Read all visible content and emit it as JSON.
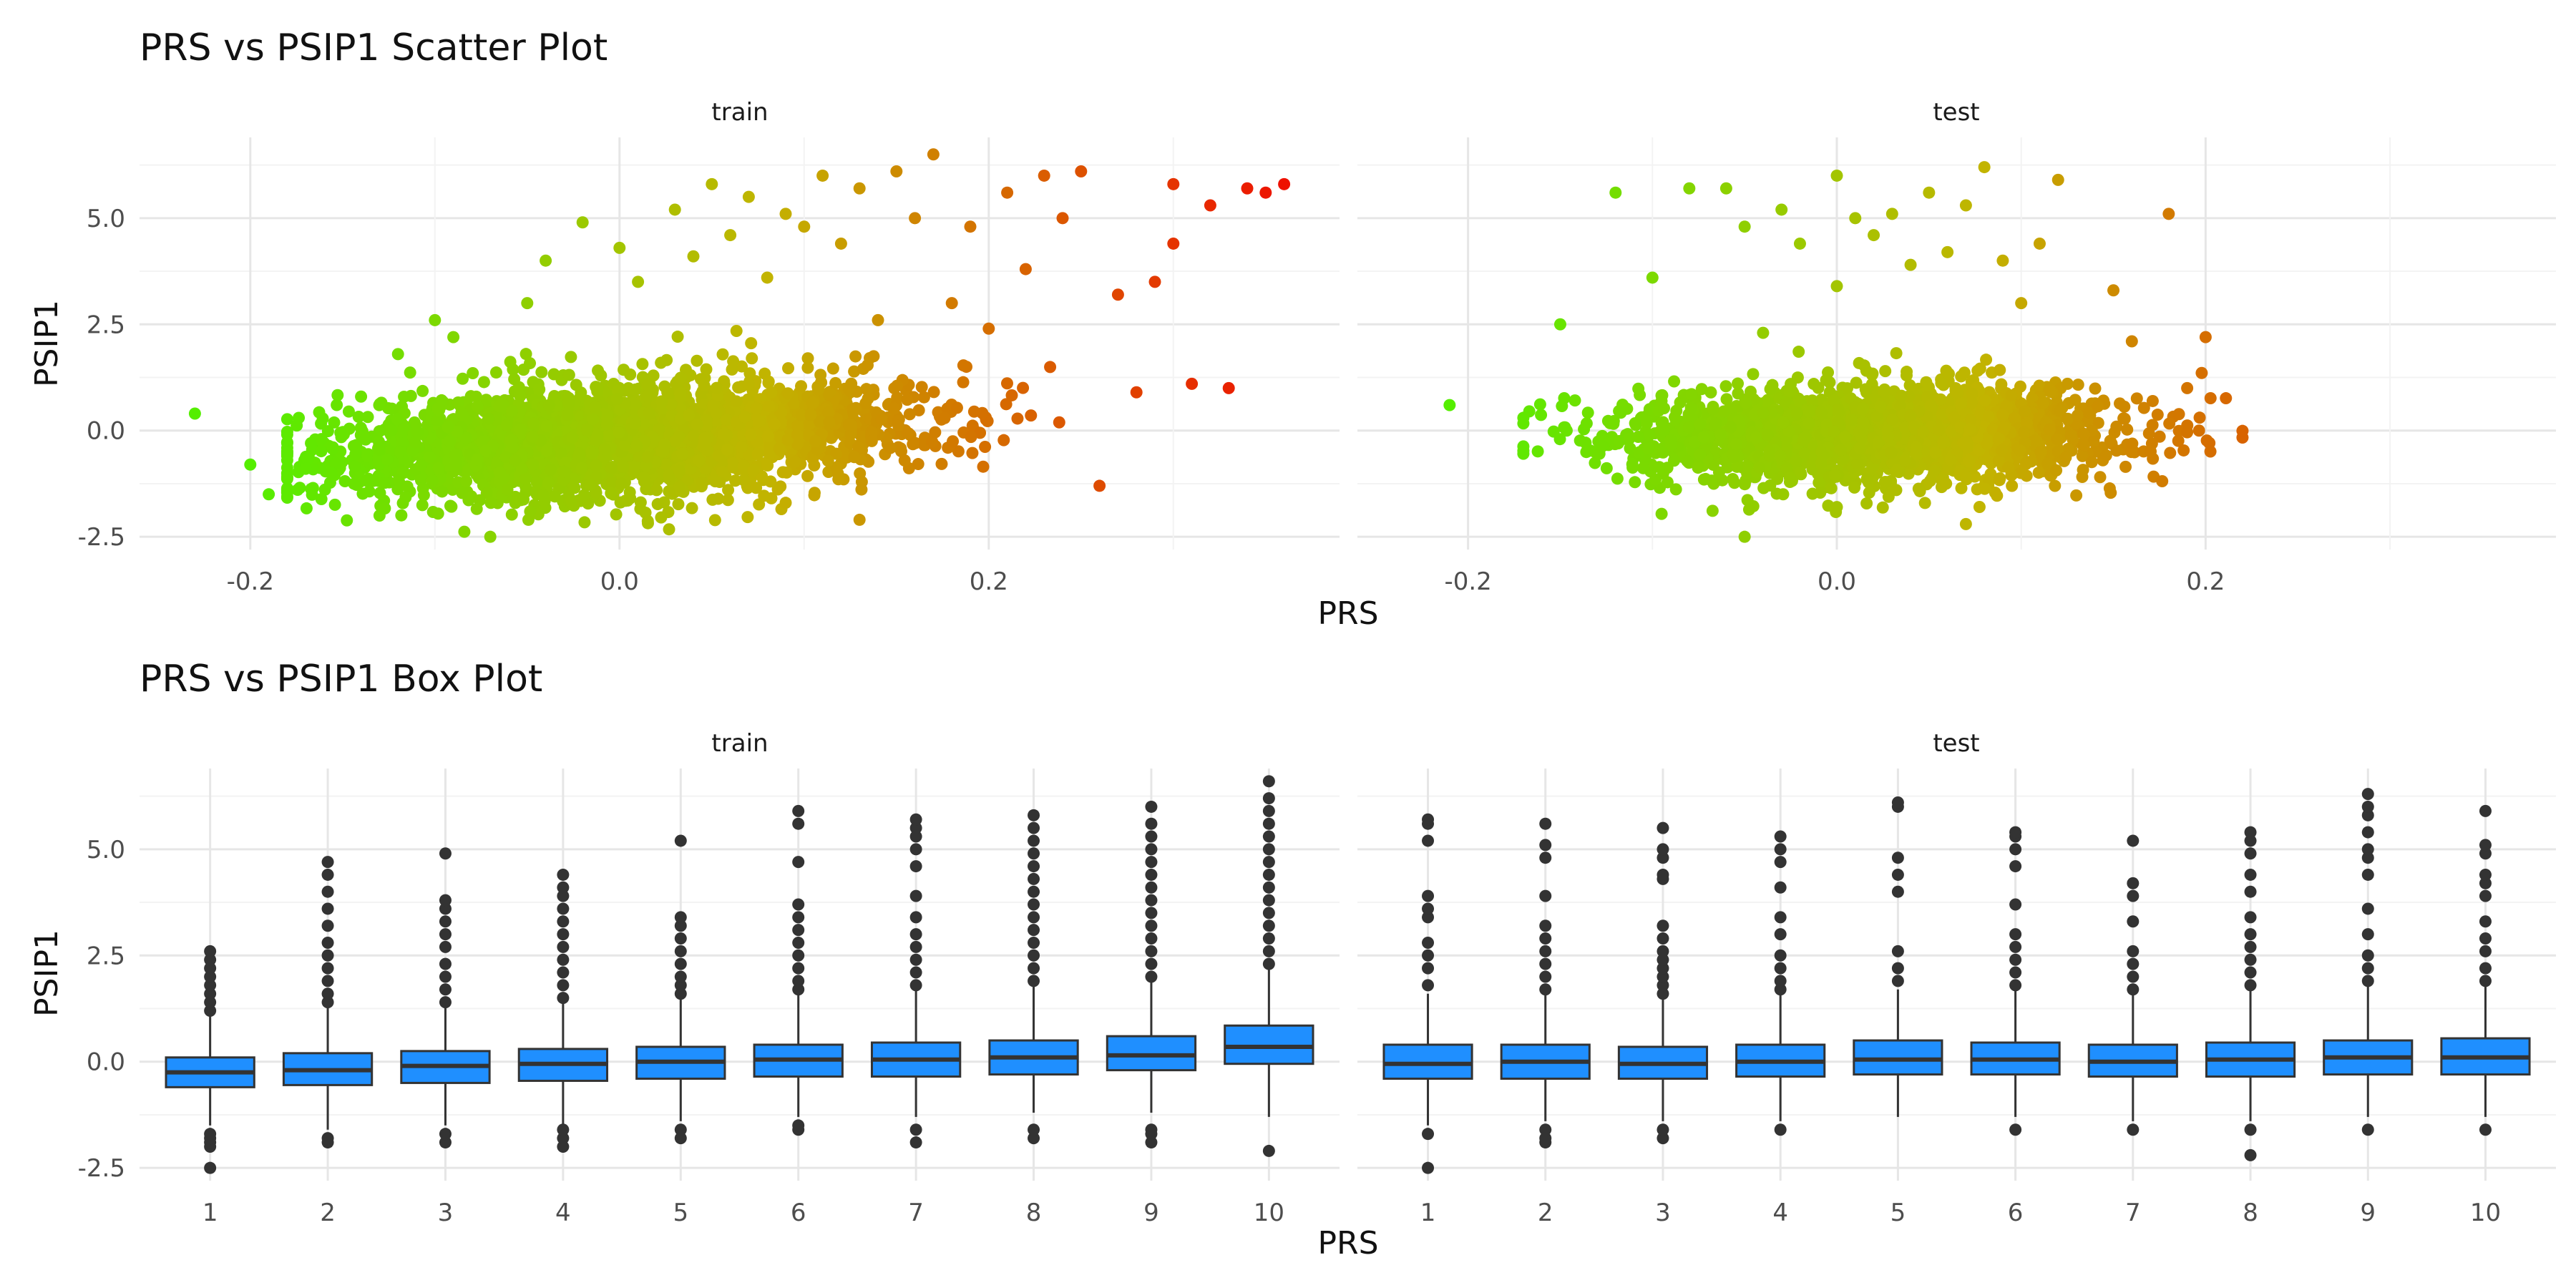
{
  "figure": {
    "scatter_title": "PRS vs PSIP1 Scatter Plot",
    "box_title": "PRS vs PSIP1 Box Plot",
    "xlabel": "PRS",
    "ylabel": "PSIP1",
    "facets": [
      "train",
      "test"
    ]
  },
  "colors": {
    "low": "#55ee00",
    "mid": "#c2b400",
    "high": "#ee1100",
    "box_fill": "#1f8fff",
    "box_line": "#333333",
    "grid_major": "#e6e6e6",
    "grid_minor": "#f3f3f3"
  },
  "chart_data": [
    {
      "type": "scatter",
      "title": "PRS vs PSIP1 Scatter Plot",
      "xlabel": "PRS",
      "ylabel": "PSIP1",
      "xlim": [
        -0.26,
        0.39
      ],
      "ylim": [
        -2.8,
        6.9
      ],
      "x_ticks": [
        -0.2,
        0.0,
        0.2
      ],
      "x_tick_labels": [
        "-0.2",
        "0.0",
        "0.2"
      ],
      "y_ticks": [
        -2.5,
        0,
        2.5,
        5
      ],
      "y_tick_labels": [
        "-2.5",
        "0.0",
        "2.5",
        "5.0"
      ],
      "color_by": "x",
      "grid": true,
      "facets": [
        {
          "name": "train",
          "cloud": {
            "n": 3200,
            "x_mean": 0.0,
            "x_sd": 0.075,
            "x_range": [
              -0.18,
              0.25
            ],
            "y_base": -0.2,
            "y_slope": 2.5,
            "y_sd": 0.6
          },
          "outliers": [
            [
              -0.23,
              0.4
            ],
            [
              -0.2,
              -0.8
            ],
            [
              -0.19,
              -1.5
            ],
            [
              -0.17,
              -0.9
            ],
            [
              -0.14,
              0.8
            ],
            [
              -0.13,
              -2.0
            ],
            [
              -0.12,
              1.8
            ],
            [
              -0.1,
              2.6
            ],
            [
              -0.09,
              2.2
            ],
            [
              -0.07,
              -2.5
            ],
            [
              -0.05,
              3.0
            ],
            [
              -0.04,
              4.0
            ],
            [
              -0.02,
              4.9
            ],
            [
              0.0,
              4.3
            ],
            [
              0.01,
              3.5
            ],
            [
              0.03,
              5.2
            ],
            [
              0.04,
              4.1
            ],
            [
              0.05,
              5.8
            ],
            [
              0.06,
              4.6
            ],
            [
              0.07,
              5.5
            ],
            [
              0.08,
              3.6
            ],
            [
              0.09,
              5.1
            ],
            [
              0.1,
              4.8
            ],
            [
              0.11,
              6.0
            ],
            [
              0.12,
              4.4
            ],
            [
              0.13,
              5.7
            ],
            [
              0.14,
              2.6
            ],
            [
              0.15,
              6.1
            ],
            [
              0.16,
              5.0
            ],
            [
              0.17,
              6.5
            ],
            [
              0.18,
              3.0
            ],
            [
              0.19,
              4.8
            ],
            [
              0.2,
              2.4
            ],
            [
              0.21,
              5.6
            ],
            [
              0.22,
              3.8
            ],
            [
              0.23,
              6.0
            ],
            [
              0.24,
              5.0
            ],
            [
              0.25,
              6.1
            ],
            [
              0.26,
              -1.3
            ],
            [
              0.27,
              3.2
            ],
            [
              0.28,
              0.9
            ],
            [
              0.29,
              3.5
            ],
            [
              0.3,
              5.8
            ],
            [
              0.3,
              4.4
            ],
            [
              0.31,
              1.1
            ],
            [
              0.32,
              5.3
            ],
            [
              0.33,
              1.0
            ],
            [
              0.34,
              5.7
            ],
            [
              0.35,
              5.6
            ],
            [
              0.36,
              5.8
            ],
            [
              0.13,
              -2.1
            ],
            [
              0.09,
              -1.7
            ]
          ]
        },
        {
          "name": "test",
          "cloud": {
            "n": 2200,
            "x_mean": 0.02,
            "x_sd": 0.065,
            "x_range": [
              -0.17,
              0.22
            ],
            "y_base": -0.1,
            "y_slope": 0.8,
            "y_sd": 0.55
          },
          "outliers": [
            [
              -0.21,
              0.6
            ],
            [
              -0.15,
              2.5
            ],
            [
              -0.12,
              5.6
            ],
            [
              -0.1,
              3.6
            ],
            [
              -0.08,
              5.7
            ],
            [
              -0.06,
              5.7
            ],
            [
              -0.05,
              4.8
            ],
            [
              -0.04,
              2.3
            ],
            [
              -0.03,
              5.2
            ],
            [
              -0.02,
              4.4
            ],
            [
              0.0,
              6.0
            ],
            [
              0.0,
              3.4
            ],
            [
              0.01,
              5.0
            ],
            [
              0.02,
              4.6
            ],
            [
              0.03,
              5.1
            ],
            [
              0.04,
              3.9
            ],
            [
              0.05,
              5.6
            ],
            [
              0.06,
              4.2
            ],
            [
              0.07,
              5.3
            ],
            [
              0.08,
              6.2
            ],
            [
              0.09,
              4.0
            ],
            [
              0.1,
              3.0
            ],
            [
              0.11,
              4.4
            ],
            [
              0.12,
              5.9
            ],
            [
              0.15,
              3.3
            ],
            [
              0.16,
              2.1
            ],
            [
              0.18,
              5.1
            ],
            [
              0.19,
              1.0
            ],
            [
              0.2,
              2.2
            ],
            [
              -0.05,
              -2.5
            ],
            [
              0.07,
              -2.2
            ],
            [
              0.0,
              -1.8
            ]
          ]
        }
      ]
    },
    {
      "type": "box",
      "title": "PRS vs PSIP1 Box Plot",
      "xlabel": "PRS",
      "ylabel": "PSIP1",
      "categories": [
        "1",
        "2",
        "3",
        "4",
        "5",
        "6",
        "7",
        "8",
        "9",
        "10"
      ],
      "ylim": [
        -2.8,
        6.9
      ],
      "y_ticks": [
        -2.5,
        0,
        2.5,
        5
      ],
      "y_tick_labels": [
        "-2.5",
        "0.0",
        "2.5",
        "5.0"
      ],
      "grid": true,
      "facets": [
        {
          "name": "train",
          "boxes": [
            {
              "whisker_low": -1.5,
              "q1": -0.6,
              "median": -0.25,
              "q3": 0.1,
              "whisker_high": 1.1,
              "outliers": [
                -2.5,
                -2.0,
                -1.9,
                -1.8,
                -1.7,
                1.2,
                1.4,
                1.6,
                1.8,
                2.0,
                2.2,
                2.4,
                2.6
              ]
            },
            {
              "whisker_low": -1.6,
              "q1": -0.55,
              "median": -0.2,
              "q3": 0.2,
              "whisker_high": 1.3,
              "outliers": [
                -1.9,
                -1.8,
                1.4,
                1.6,
                1.9,
                2.2,
                2.5,
                2.8,
                3.2,
                3.6,
                4.0,
                4.4,
                4.7
              ]
            },
            {
              "whisker_low": -1.5,
              "q1": -0.5,
              "median": -0.1,
              "q3": 0.25,
              "whisker_high": 1.3,
              "outliers": [
                -1.9,
                -1.7,
                1.4,
                1.7,
                2.0,
                2.3,
                2.7,
                3.0,
                3.3,
                3.6,
                3.8,
                4.9
              ]
            },
            {
              "whisker_low": -1.5,
              "q1": -0.45,
              "median": -0.05,
              "q3": 0.3,
              "whisker_high": 1.4,
              "outliers": [
                -2.0,
                -1.8,
                -1.6,
                1.5,
                1.8,
                2.1,
                2.4,
                2.7,
                3.0,
                3.3,
                3.6,
                3.9,
                4.1,
                4.4
              ]
            },
            {
              "whisker_low": -1.4,
              "q1": -0.4,
              "median": 0.0,
              "q3": 0.35,
              "whisker_high": 1.5,
              "outliers": [
                -1.8,
                -1.6,
                1.6,
                1.8,
                2.0,
                2.3,
                2.6,
                2.9,
                3.2,
                3.4,
                5.2
              ]
            },
            {
              "whisker_low": -1.3,
              "q1": -0.35,
              "median": 0.05,
              "q3": 0.4,
              "whisker_high": 1.6,
              "outliers": [
                -1.6,
                -1.5,
                1.7,
                1.9,
                2.2,
                2.5,
                2.8,
                3.1,
                3.4,
                3.7,
                4.7,
                5.6,
                5.9
              ]
            },
            {
              "whisker_low": -1.3,
              "q1": -0.35,
              "median": 0.05,
              "q3": 0.45,
              "whisker_high": 1.7,
              "outliers": [
                -1.9,
                -1.6,
                1.8,
                2.1,
                2.4,
                2.7,
                3.0,
                3.4,
                3.9,
                4.6,
                5.0,
                5.3,
                5.5,
                5.7
              ]
            },
            {
              "whisker_low": -1.2,
              "q1": -0.3,
              "median": 0.1,
              "q3": 0.5,
              "whisker_high": 1.8,
              "outliers": [
                -1.8,
                -1.6,
                1.9,
                2.2,
                2.5,
                2.8,
                3.1,
                3.4,
                3.7,
                4.0,
                4.3,
                4.6,
                4.9,
                5.2,
                5.5,
                5.8
              ]
            },
            {
              "whisker_low": -1.2,
              "q1": -0.2,
              "median": 0.15,
              "q3": 0.6,
              "whisker_high": 1.9,
              "outliers": [
                -1.9,
                -1.7,
                -1.6,
                2.0,
                2.3,
                2.6,
                2.9,
                3.2,
                3.5,
                3.8,
                4.1,
                4.4,
                4.7,
                5.0,
                5.3,
                5.6,
                6.0
              ]
            },
            {
              "whisker_low": -1.3,
              "q1": -0.05,
              "median": 0.35,
              "q3": 0.85,
              "whisker_high": 2.2,
              "outliers": [
                -2.1,
                2.3,
                2.6,
                2.9,
                3.2,
                3.5,
                3.8,
                4.1,
                4.4,
                4.7,
                5.0,
                5.3,
                5.6,
                5.9,
                6.2,
                6.6
              ]
            }
          ]
        },
        {
          "name": "test",
          "boxes": [
            {
              "whisker_low": -1.5,
              "q1": -0.4,
              "median": -0.05,
              "q3": 0.4,
              "whisker_high": 1.6,
              "outliers": [
                -2.5,
                -1.7,
                1.8,
                2.2,
                2.5,
                2.8,
                3.4,
                3.6,
                3.9,
                5.2,
                5.6,
                5.7
              ]
            },
            {
              "whisker_low": -1.4,
              "q1": -0.4,
              "median": 0.0,
              "q3": 0.4,
              "whisker_high": 1.6,
              "outliers": [
                -1.9,
                -1.8,
                -1.6,
                1.7,
                2.0,
                2.3,
                2.6,
                2.9,
                3.2,
                3.9,
                4.8,
                5.1,
                5.6
              ]
            },
            {
              "whisker_low": -1.4,
              "q1": -0.4,
              "median": -0.05,
              "q3": 0.35,
              "whisker_high": 1.5,
              "outliers": [
                -1.8,
                -1.6,
                1.6,
                1.8,
                2.0,
                2.2,
                2.4,
                2.6,
                2.9,
                3.2,
                4.3,
                4.4,
                4.8,
                5.0,
                5.5
              ]
            },
            {
              "whisker_low": -1.4,
              "q1": -0.35,
              "median": 0.0,
              "q3": 0.4,
              "whisker_high": 1.6,
              "outliers": [
                -1.6,
                1.7,
                1.9,
                2.2,
                2.5,
                3.0,
                3.4,
                4.1,
                4.7,
                5.0,
                5.3
              ]
            },
            {
              "whisker_low": -1.3,
              "q1": -0.3,
              "median": 0.05,
              "q3": 0.5,
              "whisker_high": 1.7,
              "outliers": [
                1.9,
                2.2,
                2.6,
                4.0,
                4.4,
                4.8,
                6.0,
                6.1
              ]
            },
            {
              "whisker_low": -1.3,
              "q1": -0.3,
              "median": 0.05,
              "q3": 0.45,
              "whisker_high": 1.7,
              "outliers": [
                -1.6,
                1.8,
                2.1,
                2.4,
                2.7,
                3.0,
                3.7,
                4.6,
                5.0,
                5.3,
                5.4
              ]
            },
            {
              "whisker_low": -1.4,
              "q1": -0.35,
              "median": 0.0,
              "q3": 0.4,
              "whisker_high": 1.6,
              "outliers": [
                -1.6,
                1.7,
                2.0,
                2.3,
                2.6,
                3.3,
                3.9,
                4.2,
                5.2
              ]
            },
            {
              "whisker_low": -1.4,
              "q1": -0.35,
              "median": 0.05,
              "q3": 0.45,
              "whisker_high": 1.7,
              "outliers": [
                -2.2,
                -1.6,
                1.8,
                2.1,
                2.4,
                2.7,
                3.0,
                3.4,
                4.0,
                4.4,
                4.9,
                5.2,
                5.4
              ]
            },
            {
              "whisker_low": -1.3,
              "q1": -0.3,
              "median": 0.1,
              "q3": 0.5,
              "whisker_high": 1.8,
              "outliers": [
                -1.6,
                1.9,
                2.2,
                2.5,
                3.0,
                3.6,
                4.4,
                4.8,
                5.0,
                5.4,
                5.8,
                6.0,
                6.3
              ]
            },
            {
              "whisker_low": -1.3,
              "q1": -0.3,
              "median": 0.1,
              "q3": 0.55,
              "whisker_high": 1.8,
              "outliers": [
                -1.6,
                1.9,
                2.2,
                2.6,
                2.9,
                3.3,
                3.9,
                4.2,
                4.4,
                4.9,
                5.1,
                5.9
              ]
            }
          ]
        }
      ]
    }
  ]
}
